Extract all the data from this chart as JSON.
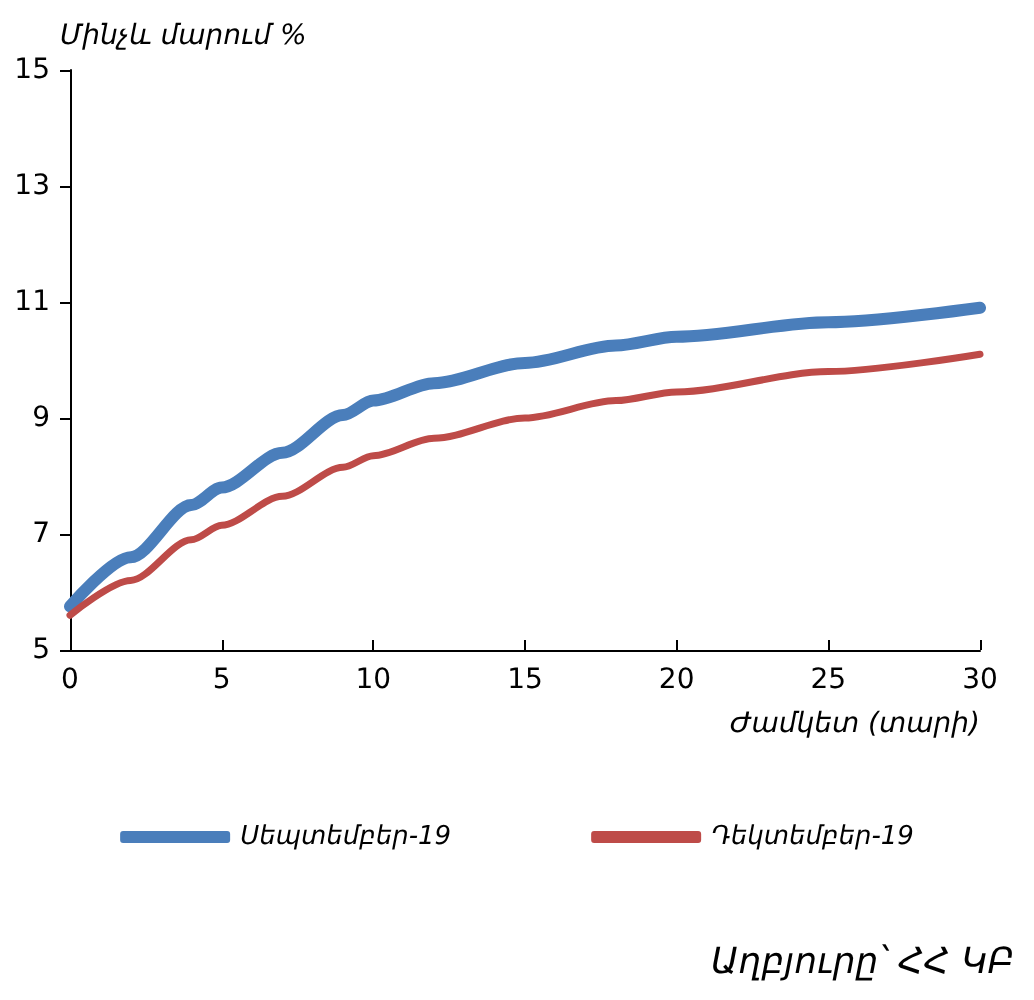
{
  "chart_data": {
    "type": "line",
    "ylabel": "Մինչև մարում %",
    "xlabel": "Ժամկետ (տարի)",
    "annotations": [
      "Աղբյուրը՝ ՀՀ ԿԲ"
    ],
    "x": [
      0,
      2,
      4,
      5,
      7,
      9,
      10,
      12,
      15,
      18,
      20,
      25,
      30
    ],
    "series": [
      {
        "name": "Սեպտեմբեր-19",
        "color": "#4a7ebb",
        "values": [
          5.75,
          6.6,
          7.5,
          7.8,
          8.4,
          9.05,
          9.3,
          9.6,
          9.95,
          10.25,
          10.4,
          10.65,
          10.9
        ]
      },
      {
        "name": "Դեկտեմբեր-19",
        "color": "#be4b48",
        "values": [
          5.6,
          6.2,
          6.9,
          7.15,
          7.65,
          8.15,
          8.35,
          8.65,
          9.0,
          9.3,
          9.45,
          9.8,
          10.1
        ]
      }
    ],
    "xlim": [
      0,
      30
    ],
    "xticks": [
      0,
      5,
      10,
      15,
      20,
      25,
      30
    ],
    "ylim": [
      5,
      15
    ],
    "yticks": [
      5,
      7,
      9,
      11,
      13,
      15
    ],
    "grid": false,
    "legend": "bottom",
    "marker": "none",
    "line_style": "solid"
  }
}
